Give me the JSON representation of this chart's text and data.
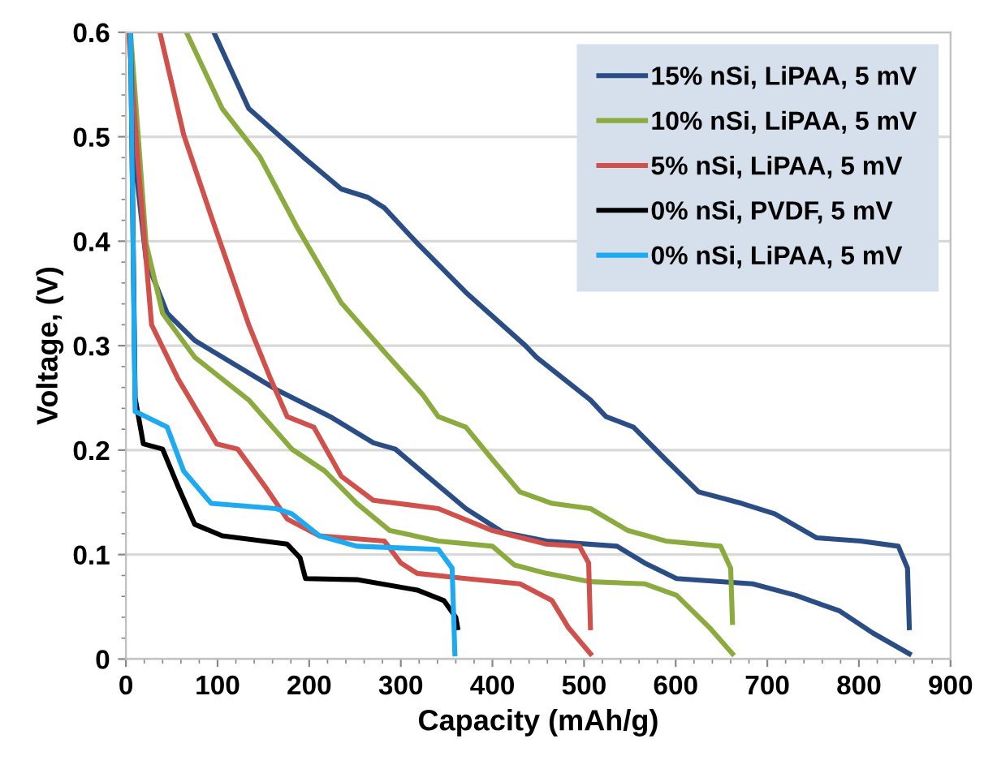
{
  "chart_data": {
    "type": "line",
    "xlabel": "Capacity (mAh/g)",
    "ylabel": "Voltage, (V)",
    "xlim": [
      0,
      900
    ],
    "ylim": [
      0,
      0.6
    ],
    "xticks": [
      0,
      100,
      200,
      300,
      400,
      500,
      600,
      700,
      800,
      900
    ],
    "yticks": [
      0,
      0.1,
      0.2,
      0.3,
      0.4,
      0.5,
      0.6
    ],
    "grid": "y",
    "legend": "top right",
    "marker": "none",
    "line_style": "solid",
    "series": [
      {
        "name": "15% nSi, LiPAA, 5 mV",
        "color": "#2b4d86",
        "x": [
          96,
          134,
          193,
          235,
          264,
          282,
          318,
          371,
          436,
          448,
          507,
          524,
          554,
          589,
          625,
          672,
          708,
          754,
          802,
          843,
          853,
          855,
          null,
          4,
          10,
          22,
          45,
          75,
          164,
          223,
          270,
          294,
          329,
          371,
          412,
          459,
          536,
          566,
          601,
          684,
          731,
          779,
          815,
          855
        ],
        "values": [
          0.6,
          0.527,
          0.481,
          0.45,
          0.442,
          0.432,
          0.398,
          0.351,
          0.3,
          0.289,
          0.248,
          0.232,
          0.222,
          0.191,
          0.16,
          0.149,
          0.139,
          0.116,
          0.113,
          0.108,
          0.087,
          0.03,
          null,
          0.6,
          0.476,
          0.382,
          0.331,
          0.305,
          0.258,
          0.232,
          0.207,
          0.201,
          0.175,
          0.144,
          0.121,
          0.113,
          0.108,
          0.092,
          0.077,
          0.072,
          0.061,
          0.046,
          0.025,
          0.005
        ]
      },
      {
        "name": "10% nSi, LiPAA, 5 mV",
        "color": "#8bab3e",
        "x": [
          66,
          105,
          146,
          187,
          235,
          282,
          324,
          341,
          371,
          400,
          430,
          465,
          507,
          548,
          589,
          649,
          660,
          662,
          null,
          5,
          22,
          40,
          75,
          134,
          181,
          217,
          252,
          288,
          341,
          400,
          424,
          459,
          507,
          566,
          601,
          637,
          662
        ],
        "values": [
          0.6,
          0.527,
          0.481,
          0.413,
          0.341,
          0.294,
          0.253,
          0.232,
          0.222,
          0.191,
          0.16,
          0.149,
          0.144,
          0.123,
          0.113,
          0.108,
          0.087,
          0.035,
          null,
          0.6,
          0.398,
          0.331,
          0.289,
          0.248,
          0.201,
          0.18,
          0.149,
          0.123,
          0.113,
          0.108,
          0.09,
          0.082,
          0.074,
          0.072,
          0.061,
          0.03,
          0.005
        ]
      },
      {
        "name": "5% nSi, LiPAA, 5 mV",
        "color": "#d0514c",
        "x": [
          37,
          63,
          93,
          134,
          158,
          176,
          205,
          235,
          270,
          341,
          400,
          459,
          495,
          505,
          507,
          null,
          3,
          13,
          28,
          57,
          99,
          122,
          152,
          176,
          211,
          282,
          300,
          318,
          371,
          430,
          465,
          483,
          507
        ],
        "values": [
          0.6,
          0.502,
          0.424,
          0.32,
          0.268,
          0.232,
          0.222,
          0.175,
          0.152,
          0.144,
          0.123,
          0.11,
          0.108,
          0.092,
          0.03,
          null,
          0.6,
          0.476,
          0.32,
          0.268,
          0.206,
          0.201,
          0.165,
          0.134,
          0.118,
          0.113,
          0.092,
          0.082,
          0.077,
          0.072,
          0.056,
          0.03,
          0.005
        ]
      },
      {
        "name": "0% nSi, PVDF, 5 mV",
        "color": "#000000",
        "x": [
          5,
          10,
          19,
          40,
          57,
          75,
          105,
          176,
          190,
          196,
          252,
          318,
          347,
          360,
          362
        ],
        "values": [
          0.6,
          0.25,
          0.206,
          0.201,
          0.165,
          0.129,
          0.118,
          0.11,
          0.097,
          0.077,
          0.076,
          0.066,
          0.056,
          0.04,
          0.03
        ]
      },
      {
        "name": "0% nSi, LiPAA, 5 mV",
        "color": "#1eaaf0",
        "x": [
          5,
          10,
          22,
          45,
          63,
          93,
          164,
          181,
          211,
          252,
          341,
          356,
          359
        ],
        "values": [
          0.6,
          0.237,
          0.232,
          0.222,
          0.18,
          0.149,
          0.144,
          0.139,
          0.118,
          0.108,
          0.105,
          0.087,
          0.005
        ]
      }
    ]
  }
}
